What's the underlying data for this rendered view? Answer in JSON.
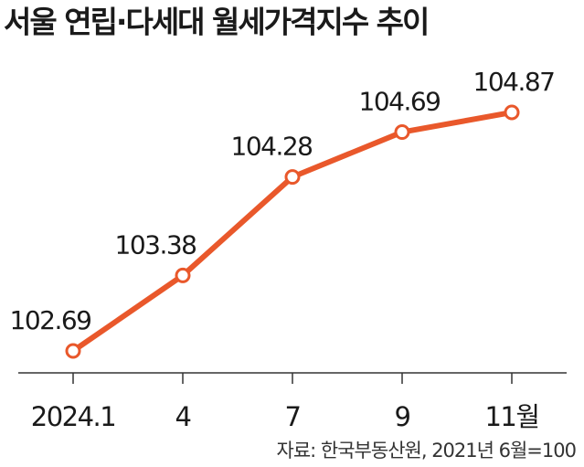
{
  "chart_data": {
    "type": "line",
    "title": "서울 연립·다세대 월세가격지수 추이",
    "categories": [
      "2024.1",
      "4",
      "7",
      "9",
      "11월"
    ],
    "values": [
      102.69,
      103.38,
      104.28,
      104.69,
      104.87
    ],
    "color": "#e9582b",
    "source": "자료: 한국부동산원, 2021년 6월=100"
  }
}
